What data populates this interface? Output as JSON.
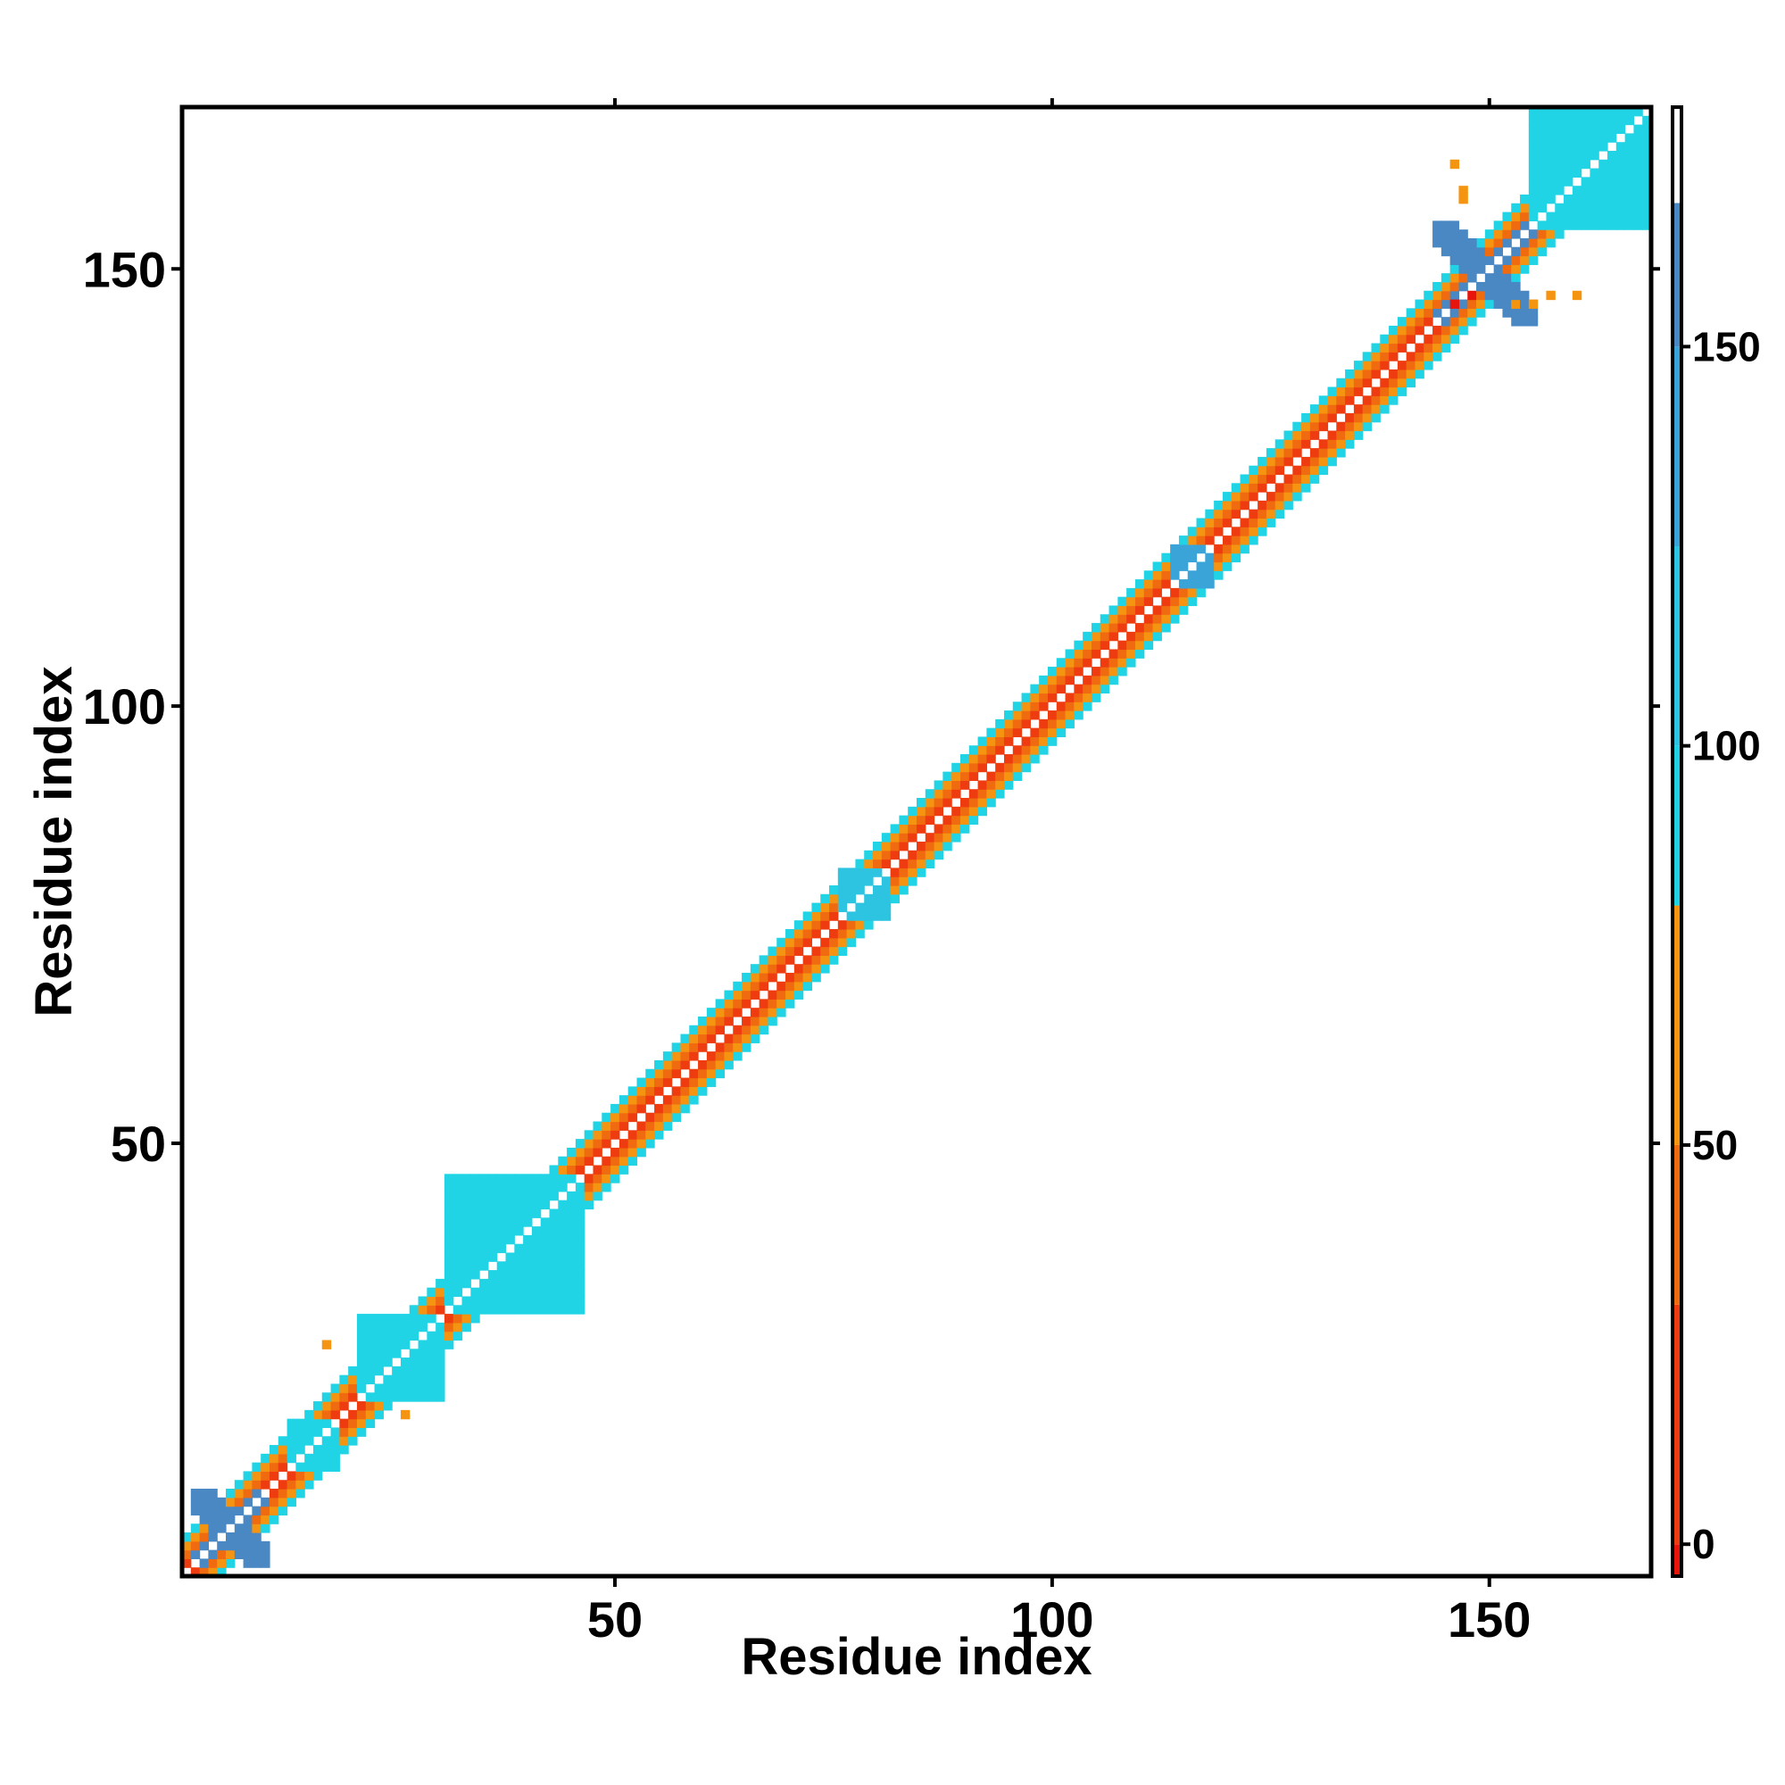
{
  "chart_data": {
    "type": "heatmap",
    "title": "",
    "xlabel": "Residue index",
    "ylabel": "Residue index",
    "xlim": [
      1,
      168
    ],
    "ylim": [
      1,
      168
    ],
    "x_ticks": [
      50,
      100,
      150
    ],
    "y_ticks": [
      50,
      100,
      150
    ],
    "grid": false,
    "legend": "colorbar, right",
    "colorbar": {
      "range": [
        -4,
        180
      ],
      "ticks": [
        0,
        50,
        100,
        150
      ],
      "bands": [
        {
          "from": -4,
          "to": 0,
          "color": "#e8150c"
        },
        {
          "from": 0,
          "to": 30,
          "color": "#ee3c10"
        },
        {
          "from": 30,
          "to": 50,
          "color": "#f06a10"
        },
        {
          "from": 50,
          "to": 80,
          "color": "#f59410"
        },
        {
          "from": 80,
          "to": 100,
          "color": "#20d4e6"
        },
        {
          "from": 100,
          "to": 125,
          "color": "#2cc4e0"
        },
        {
          "from": 125,
          "to": 150,
          "color": "#3aa4d8"
        },
        {
          "from": 150,
          "to": 168,
          "color": "#4a88c4"
        },
        {
          "from": 168,
          "to": 180,
          "color": "#ffffff"
        }
      ]
    },
    "diagonal_band": {
      "offsets": [
        -4,
        -3,
        -2,
        -1,
        1,
        2,
        3,
        4
      ],
      "value_by_offset": {
        "1": 8,
        "2": 45,
        "3": 62,
        "4": 95
      }
    },
    "regions": [
      {
        "x": [
          2,
          10
        ],
        "y": [
          2,
          10
        ],
        "value": 160,
        "shape": "cross"
      },
      {
        "x": [
          13,
          18
        ],
        "y": [
          13,
          18
        ],
        "value": 92,
        "shape": "block"
      },
      {
        "x": [
          21,
          30
        ],
        "y": [
          21,
          30
        ],
        "value": 92,
        "shape": "block"
      },
      {
        "x": [
          31,
          46
        ],
        "y": [
          31,
          46
        ],
        "value": 92,
        "shape": "block"
      },
      {
        "x": [
          76,
          81
        ],
        "y": [
          76,
          81
        ],
        "value": 100,
        "shape": "block"
      },
      {
        "x": [
          114,
          118
        ],
        "y": [
          114,
          118
        ],
        "value": 140,
        "shape": "cross"
      },
      {
        "x": [
          144,
          155
        ],
        "y": [
          144,
          155
        ],
        "value": 160,
        "shape": "cross"
      },
      {
        "x": [
          155,
          168
        ],
        "y": [
          155,
          168
        ],
        "value": 92,
        "shape": "block"
      }
    ],
    "points": [
      {
        "x": 17,
        "y": 27,
        "value": 60
      },
      {
        "x": 26,
        "y": 19,
        "value": 60
      },
      {
        "x": 146,
        "y": 162,
        "value": 60
      },
      {
        "x": 147,
        "y": 158,
        "value": 60
      },
      {
        "x": 147,
        "y": 159,
        "value": 60
      },
      {
        "x": 153,
        "y": 146,
        "value": 60
      },
      {
        "x": 155,
        "y": 146,
        "value": 60
      },
      {
        "x": 157,
        "y": 147,
        "value": 60
      },
      {
        "x": 160,
        "y": 147,
        "value": 60
      },
      {
        "x": 146,
        "y": 146,
        "value": -2
      },
      {
        "x": 148,
        "y": 147,
        "value": -2
      }
    ]
  }
}
